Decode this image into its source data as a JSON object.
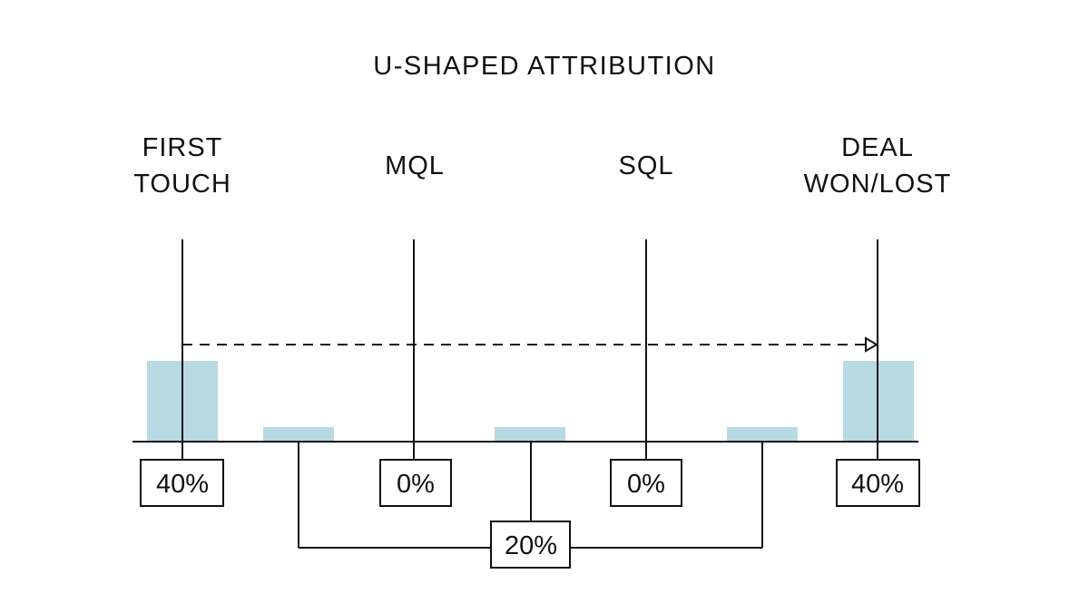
{
  "title": "U-SHAPED ATTRIBUTION",
  "colors": {
    "bar": "#b8dae3",
    "line": "#111111"
  },
  "stages": [
    {
      "label_line1": "FIRST",
      "label_line2": "TOUCH",
      "percent": "40%",
      "credit": 40
    },
    {
      "label_line1": "MQL",
      "label_line2": "",
      "percent": "0%",
      "credit": 0
    },
    {
      "label_line1": "SQL",
      "label_line2": "",
      "percent": "0%",
      "credit": 0
    },
    {
      "label_line1": "DEAL",
      "label_line2": "WON/LOST",
      "percent": "40%",
      "credit": 40
    }
  ],
  "middle_group": {
    "percent": "20%",
    "credit": 20
  },
  "journey_arrow": {
    "style": "dashed",
    "direction": "first-touch-to-deal"
  }
}
